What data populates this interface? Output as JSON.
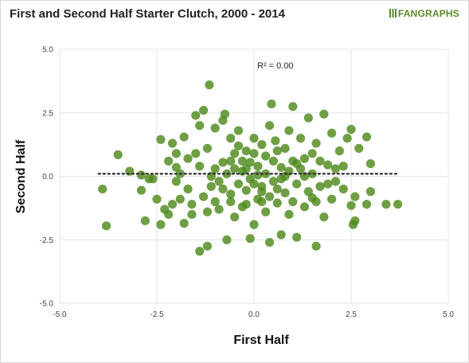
{
  "title": "First and Second Half Starter Clutch, 2000 - 2014",
  "logo": {
    "text": "FANGRAPHS"
  },
  "colors": {
    "point": "#4e8a1c",
    "trend": "#333333",
    "grid": "#e4e4e4"
  },
  "chart_data": {
    "type": "scatter",
    "title": "First and Second Half Starter Clutch, 2000 - 2014",
    "xlabel": "First Half",
    "ylabel": "Second Half",
    "xlim": [
      -5,
      5
    ],
    "ylim": [
      -5,
      5
    ],
    "xticks": [
      "-5.0",
      "-2.5",
      "0.0",
      "2.5",
      "5.0"
    ],
    "yticks": [
      "5.0",
      "2.5",
      "0.0",
      "-2.5",
      "-5.0"
    ],
    "annotation": "R² = 0.00",
    "grid": true,
    "trendline": {
      "x": [
        -4.0,
        3.7
      ],
      "y": [
        0.1,
        0.1
      ],
      "style": "dotted"
    },
    "points": [
      [
        -3.9,
        -0.5
      ],
      [
        -3.8,
        -1.95
      ],
      [
        -3.5,
        0.85
      ],
      [
        -3.2,
        0.2
      ],
      [
        -2.9,
        0.05
      ],
      [
        -2.9,
        -0.55
      ],
      [
        -2.8,
        -1.75
      ],
      [
        -2.6,
        -0.1
      ],
      [
        -2.4,
        1.45
      ],
      [
        -2.4,
        -1.9
      ],
      [
        -2.2,
        0.6
      ],
      [
        -2.2,
        -1.5
      ],
      [
        -2.1,
        1.3
      ],
      [
        -2.0,
        -0.2
      ],
      [
        -2.0,
        0.35
      ],
      [
        -1.9,
        -0.9
      ],
      [
        -1.8,
        1.55
      ],
      [
        -1.8,
        -1.85
      ],
      [
        -1.7,
        0.7
      ],
      [
        -1.6,
        -1.5
      ],
      [
        -1.6,
        -1.1
      ],
      [
        -1.5,
        2.4
      ],
      [
        -1.4,
        -2.95
      ],
      [
        -1.4,
        2.0
      ],
      [
        -1.3,
        2.6
      ],
      [
        -1.2,
        -2.75
      ],
      [
        -1.15,
        3.6
      ],
      [
        -1.2,
        1.1
      ],
      [
        -1.1,
        -0.4
      ],
      [
        -1.0,
        0.3
      ],
      [
        -1.0,
        1.9
      ],
      [
        -0.9,
        -1.3
      ],
      [
        -0.8,
        2.2
      ],
      [
        -0.8,
        0.55
      ],
      [
        -0.75,
        2.45
      ],
      [
        -0.7,
        -2.5
      ],
      [
        -0.6,
        1.5
      ],
      [
        -0.6,
        -0.7
      ],
      [
        -0.5,
        0.9
      ],
      [
        -0.5,
        -1.6
      ],
      [
        -0.4,
        1.8
      ],
      [
        -0.4,
        -0.3
      ],
      [
        -0.3,
        0.2
      ],
      [
        -0.3,
        -1.2
      ],
      [
        -0.2,
        1.0
      ],
      [
        -0.2,
        -0.55
      ],
      [
        -0.1,
        -2.45
      ],
      [
        -0.1,
        0.55
      ],
      [
        0.0,
        -1.9
      ],
      [
        0.0,
        1.5
      ],
      [
        0.1,
        -0.9
      ],
      [
        0.1,
        0.05
      ],
      [
        0.2,
        1.25
      ],
      [
        0.2,
        -0.4
      ],
      [
        0.3,
        -1.4
      ],
      [
        0.3,
        0.8
      ],
      [
        0.4,
        2.0
      ],
      [
        0.4,
        -2.6
      ],
      [
        0.45,
        2.85
      ],
      [
        0.5,
        -0.2
      ],
      [
        0.55,
        1.4
      ],
      [
        0.6,
        -1.05
      ],
      [
        0.7,
        0.35
      ],
      [
        0.7,
        -2.3
      ],
      [
        0.8,
        1.1
      ],
      [
        0.8,
        -0.65
      ],
      [
        0.9,
        1.8
      ],
      [
        0.9,
        -1.5
      ],
      [
        1.0,
        0.6
      ],
      [
        1.0,
        2.75
      ],
      [
        1.1,
        -0.3
      ],
      [
        1.1,
        -2.4
      ],
      [
        1.2,
        1.5
      ],
      [
        1.3,
        -1.2
      ],
      [
        1.3,
        0.0
      ],
      [
        1.4,
        2.3
      ],
      [
        1.5,
        -0.85
      ],
      [
        1.5,
        0.9
      ],
      [
        1.6,
        -2.75
      ],
      [
        1.6,
        1.3
      ],
      [
        1.7,
        -0.4
      ],
      [
        1.8,
        2.45
      ],
      [
        1.8,
        -1.6
      ],
      [
        1.9,
        0.45
      ],
      [
        2.0,
        1.7
      ],
      [
        2.0,
        -0.9
      ],
      [
        2.1,
        -0.2
      ],
      [
        2.2,
        1.0
      ],
      [
        2.3,
        0.4
      ],
      [
        2.4,
        1.5
      ],
      [
        2.5,
        -1.15
      ],
      [
        2.5,
        1.85
      ],
      [
        2.55,
        -1.9
      ],
      [
        2.6,
        -0.8
      ],
      [
        2.6,
        -1.75
      ],
      [
        2.7,
        1.1
      ],
      [
        2.9,
        -1.1
      ],
      [
        2.9,
        1.55
      ],
      [
        3.0,
        -0.6
      ],
      [
        3.0,
        0.5
      ],
      [
        3.4,
        -1.1
      ],
      [
        3.7,
        -1.1
      ],
      [
        -2.7,
        -0.1
      ],
      [
        -2.5,
        -0.9
      ],
      [
        -2.3,
        -1.3
      ],
      [
        -2.1,
        -1.1
      ],
      [
        -1.9,
        0.1
      ],
      [
        -1.7,
        -0.5
      ],
      [
        -1.5,
        0.9
      ],
      [
        -1.3,
        -0.8
      ],
      [
        -1.1,
        0.0
      ],
      [
        -0.9,
        -0.2
      ],
      [
        -0.7,
        0.1
      ],
      [
        -0.5,
        0.3
      ],
      [
        -0.3,
        0.6
      ],
      [
        -0.1,
        -0.1
      ],
      [
        0.1,
        0.4
      ],
      [
        0.3,
        0.1
      ],
      [
        0.5,
        0.6
      ],
      [
        0.7,
        -0.1
      ],
      [
        0.9,
        0.2
      ],
      [
        1.1,
        0.5
      ],
      [
        1.3,
        0.7
      ],
      [
        1.5,
        0.1
      ],
      [
        1.7,
        0.6
      ],
      [
        1.9,
        -0.3
      ],
      [
        2.1,
        0.3
      ],
      [
        2.3,
        -0.5
      ],
      [
        -1.0,
        -1.0
      ],
      [
        -0.6,
        -1.0
      ],
      [
        -0.2,
        -1.1
      ],
      [
        0.2,
        -1.0
      ],
      [
        0.6,
        -0.5
      ],
      [
        1.0,
        -1.0
      ],
      [
        1.4,
        -0.6
      ],
      [
        -1.4,
        0.4
      ],
      [
        -0.8,
        -0.5
      ],
      [
        0.0,
        -0.3
      ],
      [
        0.4,
        -0.8
      ],
      [
        0.8,
        0.0
      ],
      [
        1.2,
        0.3
      ],
      [
        -0.2,
        0.3
      ],
      [
        0.0,
        0.9
      ],
      [
        -0.4,
        1.2
      ],
      [
        0.6,
        1.0
      ],
      [
        -1.2,
        -1.4
      ],
      [
        1.6,
        -1.0
      ],
      [
        -0.6,
        0.6
      ],
      [
        0.2,
        -0.6
      ],
      [
        -2.0,
        0.9
      ]
    ]
  }
}
